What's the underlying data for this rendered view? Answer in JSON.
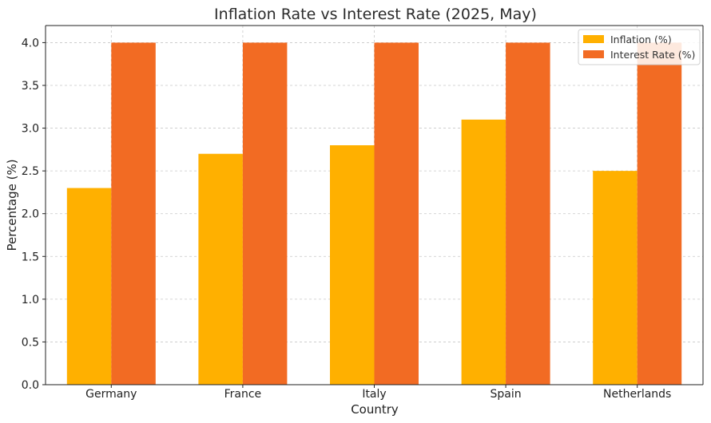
{
  "chart_data": {
    "type": "bar",
    "title": "Inflation Rate vs Interest Rate (2025, May)",
    "xlabel": "Country",
    "ylabel": "Percentage (%)",
    "categories": [
      "Germany",
      "France",
      "Italy",
      "Spain",
      "Netherlands"
    ],
    "series": [
      {
        "name": "Inflation (%)",
        "color": "#FFB000",
        "values": [
          2.3,
          2.7,
          2.8,
          3.1,
          2.5
        ]
      },
      {
        "name": "Interest Rate (%)",
        "color": "#F26B23",
        "values": [
          4.0,
          4.0,
          4.0,
          4.0,
          4.0
        ]
      }
    ],
    "ylim": [
      0,
      4.2
    ],
    "yticks": [
      "0.0",
      "0.5",
      "1.0",
      "1.5",
      "2.0",
      "2.5",
      "3.0",
      "3.5",
      "4.0"
    ],
    "grid": true,
    "legend_position": "top-right"
  }
}
